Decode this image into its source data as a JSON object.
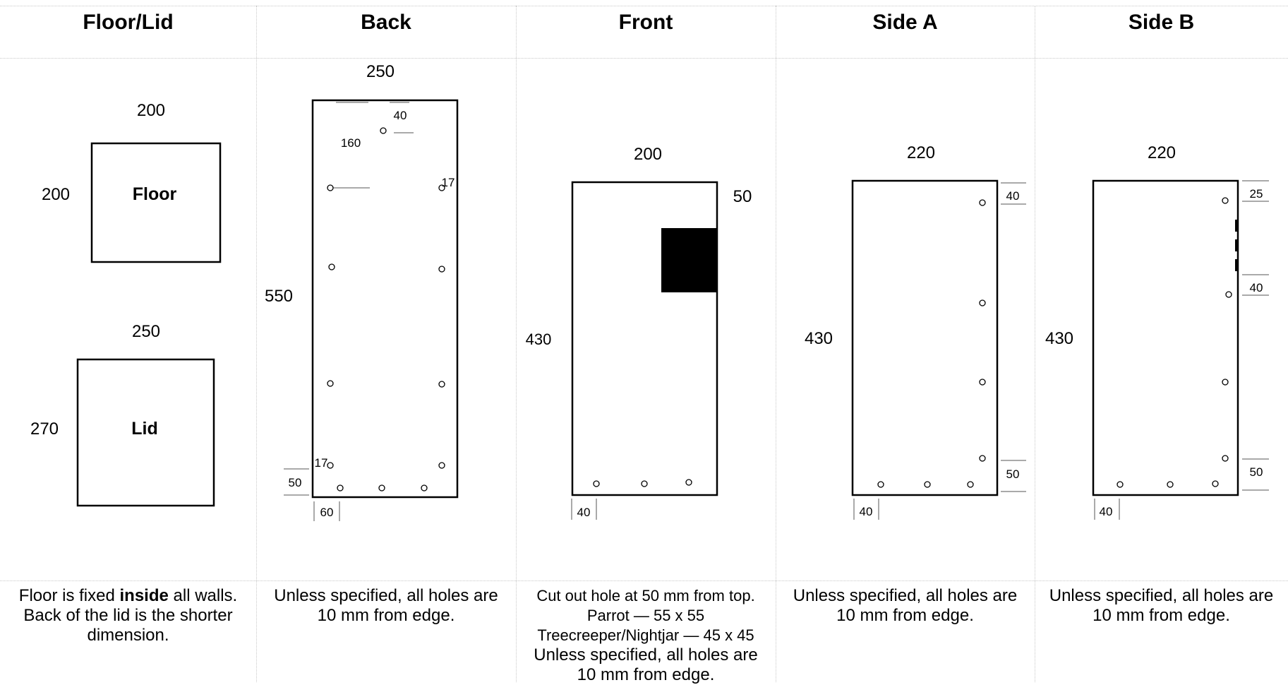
{
  "columns": [
    {
      "header": "Floor/Lid"
    },
    {
      "header": "Back"
    },
    {
      "header": "Front"
    },
    {
      "header": "Side A"
    },
    {
      "header": "Side B"
    }
  ],
  "notes": {
    "floor_lid": {
      "pre": "Floor is fixed ",
      "bold": "inside",
      "post": " all walls.",
      "line2": "Back of the lid is the shorter",
      "line3": "dimension."
    },
    "back": {
      "line1": "Unless specified, all holes are",
      "line2": "10 mm from edge."
    },
    "front": {
      "line1": "Cut out hole at 50 mm from top.",
      "line2": "Parrot — 55 x 55",
      "line3": "Treecreeper/Nightjar — 45 x 45",
      "line4": "Unless specified, all holes are",
      "line5": "10 mm from edge."
    },
    "side_a": {
      "line1": "Unless specified, all holes are",
      "line2": "10 mm from edge."
    },
    "side_b": {
      "line1": "Unless specified, all holes are",
      "line2": "10 mm from edge."
    }
  },
  "panels": {
    "floor": {
      "label": "Floor",
      "width": "200",
      "height": "200"
    },
    "lid": {
      "label": "Lid",
      "width": "250",
      "height": "270"
    },
    "back": {
      "width": "250",
      "height": "550",
      "dim_40": "40",
      "dim_160": "160",
      "dim_17_top": "17",
      "dim_17_bottom": "17",
      "dim_50": "50",
      "dim_60": "60"
    },
    "front": {
      "width": "200",
      "height": "430",
      "dim_50": "50",
      "dim_40": "40"
    },
    "side_a": {
      "width": "220",
      "height": "430",
      "dim_40_top": "40",
      "dim_50": "50",
      "dim_40_bottom": "40"
    },
    "side_b": {
      "width": "220",
      "height": "430",
      "dim_25": "25",
      "dim_40": "40",
      "dim_50": "50",
      "dim_40_bottom": "40"
    }
  }
}
